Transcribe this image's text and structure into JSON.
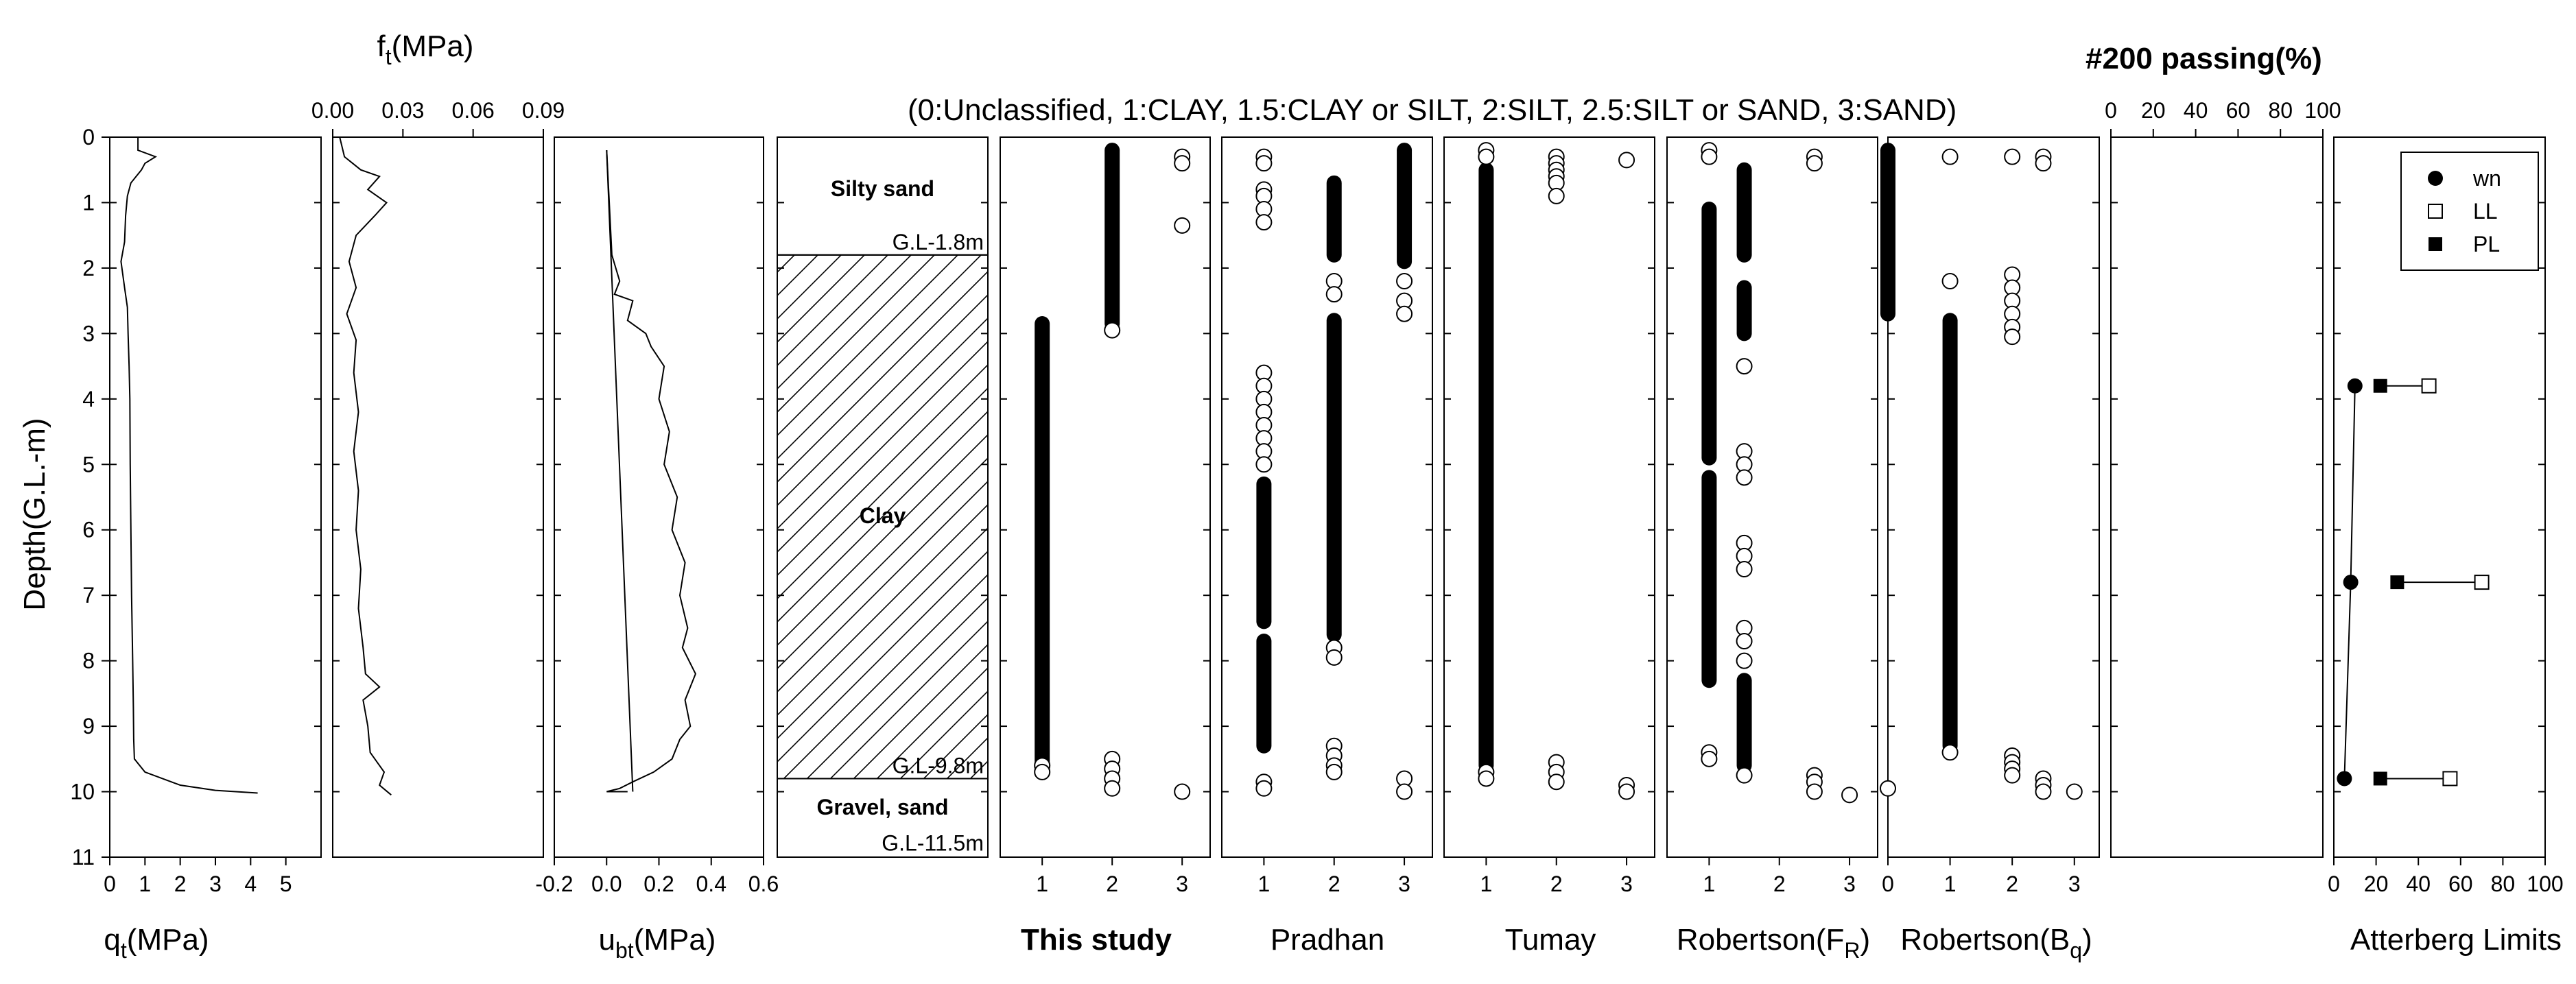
{
  "chart_data": {
    "type": "scatter",
    "title": "#200 passing(%)",
    "classification_legend": "(0:Unclassified, 1:CLAY, 1.5:CLAY or SILT, 2:SILT, 2.5:SILT or SAND, 3:SAND)",
    "ylabel": "Depth(G.L.-m)",
    "ylim": [
      0,
      11
    ],
    "y_ticks": [
      "0",
      "1",
      "2",
      "3",
      "4",
      "5",
      "6",
      "7",
      "8",
      "9",
      "10",
      "11"
    ],
    "panels": [
      {
        "id": "qt",
        "xlabel_main": "q",
        "xlabel_sub": "t",
        "xlabel_unit": "(MPa)",
        "xlim": [
          0,
          6
        ],
        "x_ticks": [
          "0",
          "1",
          "2",
          "3",
          "4",
          "5"
        ],
        "profile": [
          [
            0.8,
            0
          ],
          [
            0.8,
            0.2
          ],
          [
            1.3,
            0.3
          ],
          [
            1.0,
            0.4
          ],
          [
            0.9,
            0.5
          ],
          [
            0.6,
            0.7
          ],
          [
            0.5,
            0.9
          ],
          [
            0.45,
            1.2
          ],
          [
            0.42,
            1.6
          ],
          [
            0.32,
            1.9
          ],
          [
            0.42,
            2.3
          ],
          [
            0.5,
            2.6
          ],
          [
            0.52,
            3.0
          ],
          [
            0.55,
            3.5
          ],
          [
            0.57,
            4.0
          ],
          [
            0.58,
            5.0
          ],
          [
            0.6,
            6.0
          ],
          [
            0.62,
            7.0
          ],
          [
            0.65,
            8.0
          ],
          [
            0.67,
            8.7
          ],
          [
            0.68,
            9.2
          ],
          [
            0.7,
            9.5
          ],
          [
            1.0,
            9.7
          ],
          [
            2.0,
            9.9
          ],
          [
            3.0,
            9.98
          ],
          [
            4.2,
            10.02
          ]
        ]
      },
      {
        "id": "ft",
        "xlabel_main": "f",
        "xlabel_sub": "t",
        "xlabel_unit": "(MPa)",
        "xlim": [
          0,
          0.09
        ],
        "x_ticks": [
          "0.00",
          "0.03",
          "0.06",
          "0.09"
        ],
        "profile": [
          [
            0.003,
            0
          ],
          [
            0.005,
            0.3
          ],
          [
            0.012,
            0.5
          ],
          [
            0.02,
            0.6
          ],
          [
            0.015,
            0.8
          ],
          [
            0.023,
            1.0
          ],
          [
            0.018,
            1.2
          ],
          [
            0.01,
            1.5
          ],
          [
            0.007,
            1.9
          ],
          [
            0.01,
            2.3
          ],
          [
            0.006,
            2.7
          ],
          [
            0.01,
            3.1
          ],
          [
            0.009,
            3.6
          ],
          [
            0.011,
            4.2
          ],
          [
            0.009,
            4.8
          ],
          [
            0.011,
            5.4
          ],
          [
            0.01,
            6.0
          ],
          [
            0.012,
            6.6
          ],
          [
            0.011,
            7.2
          ],
          [
            0.013,
            7.8
          ],
          [
            0.014,
            8.2
          ],
          [
            0.02,
            8.4
          ],
          [
            0.013,
            8.6
          ],
          [
            0.015,
            9.0
          ],
          [
            0.016,
            9.4
          ],
          [
            0.022,
            9.7
          ],
          [
            0.02,
            9.9
          ],
          [
            0.025,
            10.05
          ]
        ]
      },
      {
        "id": "ubt",
        "xlabel_main": "u",
        "xlabel_sub": "bt",
        "xlabel_unit": "(MPa)",
        "xlim": [
          -0.2,
          0.6
        ],
        "x_ticks": [
          "-0.2",
          "0.0",
          "0.2",
          "0.4",
          "0.6"
        ],
        "hydrostatic": [
          [
            0.0,
            0.2
          ],
          [
            0.1,
            10.0
          ]
        ],
        "profile": [
          [
            0.0,
            0.2
          ],
          [
            0.01,
            1.0
          ],
          [
            0.02,
            1.8
          ],
          [
            0.05,
            2.2
          ],
          [
            0.03,
            2.4
          ],
          [
            0.1,
            2.5
          ],
          [
            0.08,
            2.8
          ],
          [
            0.15,
            3.0
          ],
          [
            0.17,
            3.2
          ],
          [
            0.22,
            3.5
          ],
          [
            0.2,
            4.0
          ],
          [
            0.24,
            4.5
          ],
          [
            0.22,
            5.0
          ],
          [
            0.27,
            5.5
          ],
          [
            0.25,
            6.0
          ],
          [
            0.3,
            6.5
          ],
          [
            0.28,
            7.0
          ],
          [
            0.31,
            7.5
          ],
          [
            0.29,
            7.8
          ],
          [
            0.34,
            8.2
          ],
          [
            0.3,
            8.6
          ],
          [
            0.32,
            9.0
          ],
          [
            0.28,
            9.2
          ],
          [
            0.25,
            9.5
          ],
          [
            0.18,
            9.7
          ],
          [
            0.1,
            9.85
          ],
          [
            0.05,
            9.95
          ],
          [
            0.0,
            10.0
          ],
          [
            0.08,
            10.0
          ]
        ]
      },
      {
        "id": "soil",
        "layers": [
          {
            "name": "Silty sand",
            "top": 0,
            "bottom": 1.8,
            "boundary_label": "G.L-1.8m"
          },
          {
            "name": "Clay",
            "top": 1.8,
            "bottom": 9.8,
            "boundary_label": "G.L-9.8m"
          },
          {
            "name": "Gravel, sand",
            "top": 9.8,
            "bottom": 11,
            "boundary_label": "G.L-11.5m"
          }
        ]
      },
      {
        "id": "this-study",
        "xlabel": "This study",
        "xlabel_bold": true,
        "xlim": [
          0.4,
          3.4
        ],
        "x_ticks": [
          "1",
          "2",
          "3"
        ],
        "bands": [
          [
            1,
            2.85,
            9.55
          ],
          [
            2,
            0.2,
            2.85
          ]
        ],
        "points": [
          [
            3,
            0.3
          ],
          [
            3,
            0.4
          ],
          [
            3,
            1.35
          ],
          [
            2,
            2.95
          ],
          [
            1,
            9.6
          ],
          [
            1,
            9.7
          ],
          [
            2,
            9.5
          ],
          [
            2,
            9.65
          ],
          [
            2,
            9.8
          ],
          [
            2,
            9.95
          ],
          [
            3,
            10.0
          ]
        ]
      },
      {
        "id": "pradhan",
        "xlabel": "Pradhan",
        "xlim": [
          0.4,
          3.4
        ],
        "x_ticks": [
          "1",
          "2",
          "3"
        ],
        "bands": [
          [
            2,
            0.7,
            1.8
          ],
          [
            3,
            0.2,
            1.9
          ],
          [
            2,
            2.8,
            7.6
          ],
          [
            1,
            5.3,
            7.4
          ],
          [
            1,
            7.7,
            9.3
          ]
        ],
        "points": [
          [
            1,
            0.3
          ],
          [
            1,
            0.4
          ],
          [
            1,
            0.8
          ],
          [
            1,
            0.9
          ],
          [
            1,
            1.1
          ],
          [
            1,
            1.3
          ],
          [
            3,
            2.2
          ],
          [
            3,
            2.5
          ],
          [
            3,
            2.7
          ],
          [
            2,
            2.2
          ],
          [
            2,
            2.4
          ],
          [
            1,
            3.6
          ],
          [
            1,
            3.8
          ],
          [
            1,
            4.0
          ],
          [
            1,
            4.2
          ],
          [
            1,
            4.4
          ],
          [
            1,
            4.6
          ],
          [
            1,
            4.8
          ],
          [
            1,
            5.0
          ],
          [
            2,
            7.8
          ],
          [
            2,
            7.95
          ],
          [
            2,
            9.3
          ],
          [
            2,
            9.45
          ],
          [
            2,
            9.6
          ],
          [
            2,
            9.7
          ],
          [
            1,
            9.85
          ],
          [
            1,
            9.95
          ],
          [
            3,
            9.8
          ],
          [
            3,
            10.0
          ]
        ]
      },
      {
        "id": "tumay",
        "xlabel": "Tumay",
        "xlim": [
          0.4,
          3.4
        ],
        "x_ticks": [
          "1",
          "2",
          "3"
        ],
        "bands": [
          [
            1,
            0.5,
            9.6
          ]
        ],
        "points": [
          [
            1,
            0.2
          ],
          [
            1,
            0.3
          ],
          [
            2,
            0.3
          ],
          [
            2,
            0.4
          ],
          [
            2,
            0.5
          ],
          [
            2,
            0.6
          ],
          [
            2,
            0.7
          ],
          [
            2,
            0.9
          ],
          [
            3,
            0.35
          ],
          [
            1,
            9.7
          ],
          [
            1,
            9.8
          ],
          [
            2,
            9.55
          ],
          [
            2,
            9.7
          ],
          [
            2,
            9.85
          ],
          [
            3,
            9.9
          ],
          [
            3,
            10.0
          ]
        ]
      },
      {
        "id": "robertson-fr",
        "xlabel_main": "Robertson(F",
        "xlabel_sub": "R",
        "xlabel_unit": ")",
        "xlim": [
          0.4,
          3.4
        ],
        "x_ticks": [
          "1",
          "2",
          "3"
        ],
        "bands": [
          [
            1.5,
            0.5,
            1.8
          ],
          [
            1,
            1.1,
            4.9
          ],
          [
            1.5,
            2.3,
            3.0
          ],
          [
            1,
            5.2,
            8.3
          ],
          [
            1.5,
            8.3,
            9.6
          ]
        ],
        "points": [
          [
            1,
            0.2
          ],
          [
            1,
            0.3
          ],
          [
            2.5,
            0.3
          ],
          [
            2.5,
            0.4
          ],
          [
            1.5,
            3.5
          ],
          [
            1.5,
            4.8
          ],
          [
            1.5,
            5.0
          ],
          [
            1.5,
            5.2
          ],
          [
            1.5,
            6.2
          ],
          [
            1.5,
            6.4
          ],
          [
            1.5,
            6.6
          ],
          [
            1.5,
            7.5
          ],
          [
            1.5,
            7.7
          ],
          [
            1.5,
            8.0
          ],
          [
            1,
            9.4
          ],
          [
            1,
            9.5
          ],
          [
            1.5,
            9.75
          ],
          [
            2.5,
            9.75
          ],
          [
            2.5,
            9.85
          ],
          [
            2.5,
            10.0
          ],
          [
            3,
            10.05
          ]
        ]
      },
      {
        "id": "robertson-bq",
        "xlabel_main": "Robertson(B",
        "xlabel_sub": "q",
        "xlabel_unit": ")",
        "xlim": [
          0,
          3.4
        ],
        "x_ticks": [
          "0",
          "1",
          "2",
          "3"
        ],
        "bands": [
          [
            0,
            0.2,
            2.7
          ],
          [
            1,
            2.8,
            9.3
          ]
        ],
        "points": [
          [
            1,
            0.3
          ],
          [
            2,
            0.3
          ],
          [
            2.5,
            0.3
          ],
          [
            2.5,
            0.4
          ],
          [
            1,
            2.2
          ],
          [
            2,
            2.1
          ],
          [
            2,
            2.3
          ],
          [
            2,
            2.5
          ],
          [
            2,
            2.7
          ],
          [
            2,
            2.9
          ],
          [
            2,
            3.05
          ],
          [
            1,
            9.4
          ],
          [
            2,
            9.45
          ],
          [
            2,
            9.55
          ],
          [
            2,
            9.65
          ],
          [
            2,
            9.75
          ],
          [
            2.5,
            9.8
          ],
          [
            2.5,
            9.9
          ],
          [
            2.5,
            10.0
          ],
          [
            3,
            10.0
          ],
          [
            0,
            9.95
          ]
        ]
      },
      {
        "id": "passing",
        "xlim": [
          0,
          100
        ],
        "x_ticks": [
          "0",
          "20",
          "40",
          "60",
          "80",
          "100"
        ],
        "profile": []
      },
      {
        "id": "atterberg",
        "xlabel": "Atterberg Limits",
        "xlim": [
          0,
          100
        ],
        "x_ticks": [
          "0",
          "20",
          "40",
          "60",
          "80",
          "100"
        ],
        "wn_line": [
          [
            10,
            3.8
          ],
          [
            8,
            6.8
          ],
          [
            5,
            9.8
          ]
        ],
        "series": [
          {
            "name": "wn",
            "marker": "filled-circle",
            "points": [
              [
                10,
                3.8
              ],
              [
                8,
                6.8
              ],
              [
                5,
                9.8
              ]
            ]
          },
          {
            "name": "LL",
            "marker": "open-square",
            "points": [
              [
                45,
                3.8
              ],
              [
                70,
                6.8
              ],
              [
                55,
                9.8
              ]
            ]
          },
          {
            "name": "PL",
            "marker": "filled-square",
            "points": [
              [
                22,
                3.8
              ],
              [
                30,
                6.8
              ],
              [
                22,
                9.8
              ]
            ]
          }
        ],
        "rows": [
          {
            "depth": 3.8,
            "pl": 22,
            "wn": 10,
            "ll": 45
          },
          {
            "depth": 6.8,
            "pl": 30,
            "wn": 8,
            "ll": 70
          },
          {
            "depth": 9.8,
            "pl": 22,
            "wn": 5,
            "ll": 55
          }
        ],
        "legend_position": "top-right"
      }
    ]
  }
}
